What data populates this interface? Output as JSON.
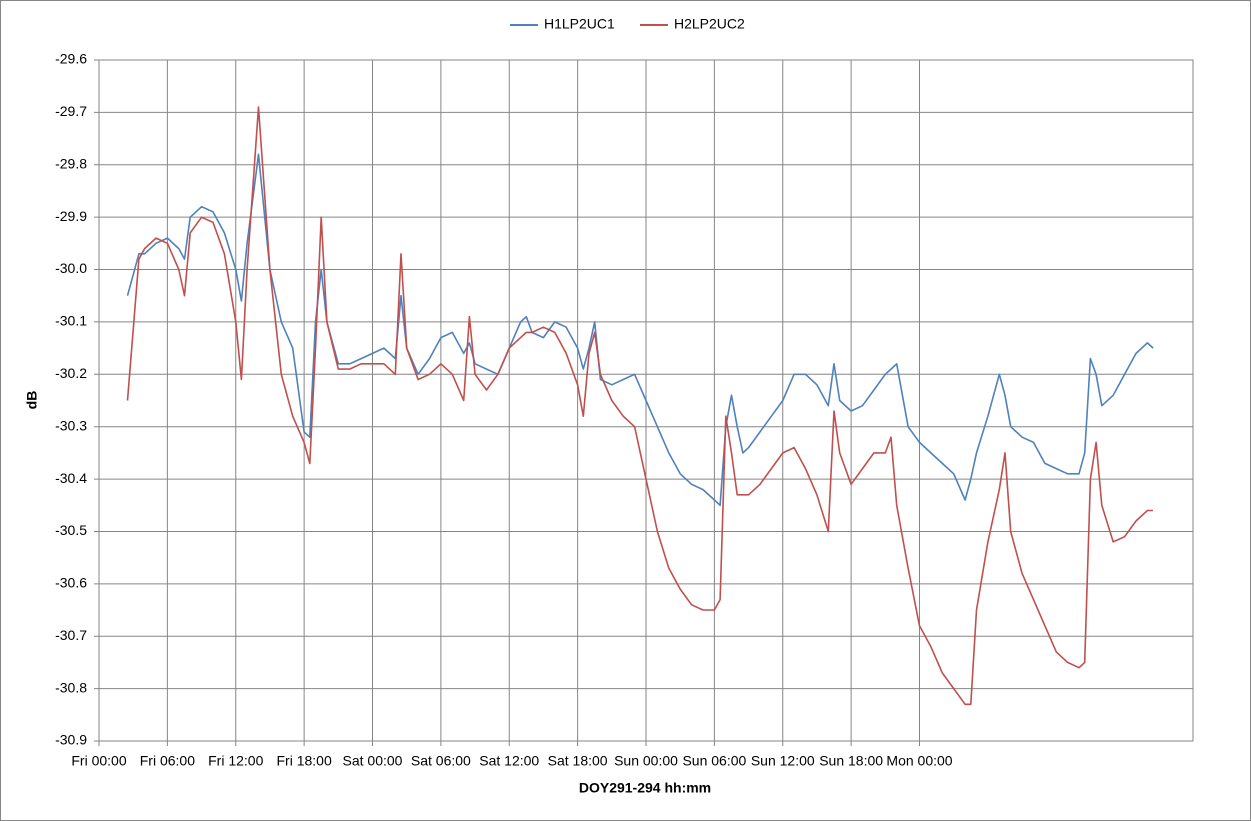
{
  "chart_data": {
    "type": "line",
    "x_label": "DOY291-294 hh:mm",
    "y_label": "dB",
    "xlim": [
      0,
      96
    ],
    "xticks": [
      {
        "value": 0,
        "label": "Fri 00:00"
      },
      {
        "value": 6,
        "label": "Fri 06:00"
      },
      {
        "value": 12,
        "label": "Fri 12:00"
      },
      {
        "value": 18,
        "label": "Fri 18:00"
      },
      {
        "value": 24,
        "label": "Sat 00:00"
      },
      {
        "value": 30,
        "label": "Sat 06:00"
      },
      {
        "value": 36,
        "label": "Sat 12:00"
      },
      {
        "value": 42,
        "label": "Sat 18:00"
      },
      {
        "value": 48,
        "label": "Sun 00:00"
      },
      {
        "value": 54,
        "label": "Sun 06:00"
      },
      {
        "value": 60,
        "label": "Sun 12:00"
      },
      {
        "value": 66,
        "label": "Sun 18:00"
      },
      {
        "value": 72,
        "label": "Mon 00:00"
      }
    ],
    "ylim": [
      -30.9,
      -29.6
    ],
    "yticks": [
      -30.9,
      -30.8,
      -30.7,
      -30.6,
      -30.5,
      -30.4,
      -30.3,
      -30.2,
      -30.1,
      {
        "value": -30,
        "label": "-30.0"
      },
      -29.9,
      -29.8,
      -29.7,
      -29.6
    ],
    "grid": true,
    "legend": "top",
    "x": [
      2.5,
      3.5,
      4,
      5,
      6,
      7,
      7.5,
      8,
      9,
      10,
      11,
      12,
      12.5,
      13,
      14,
      15,
      16,
      17,
      18,
      18.5,
      19,
      19.5,
      20,
      21,
      22,
      23,
      24,
      25,
      26,
      26.5,
      27,
      28,
      29,
      30,
      31,
      32,
      32.5,
      33,
      34,
      35,
      36,
      37,
      37.5,
      38,
      39,
      40,
      41,
      42,
      42.5,
      43,
      43.5,
      44,
      45,
      46,
      47,
      48,
      49,
      50,
      51,
      52,
      53,
      54,
      54.5,
      55,
      55.5,
      56,
      56.5,
      57,
      58,
      59,
      60,
      61,
      62,
      63,
      64,
      64.5,
      65,
      66,
      67,
      68,
      69,
      69.5,
      70,
      71,
      72,
      73,
      74,
      75,
      76,
      76.5,
      77,
      78,
      79,
      79.5,
      80,
      81,
      82,
      83,
      84,
      85,
      86,
      86.5,
      87,
      87.5,
      88,
      89,
      90,
      91,
      92,
      92.5
    ],
    "series": [
      {
        "name": "H1LP2UC1",
        "color": "#4f81bd",
        "values": [
          -30.05,
          -29.97,
          -29.97,
          -29.95,
          -29.94,
          -29.96,
          -29.98,
          -29.9,
          -29.88,
          -29.89,
          -29.93,
          -30.0,
          -30.06,
          -29.95,
          -29.78,
          -30.0,
          -30.1,
          -30.15,
          -30.31,
          -30.32,
          -30.1,
          -30.0,
          -30.1,
          -30.18,
          -30.18,
          -30.17,
          -30.16,
          -30.15,
          -30.17,
          -30.05,
          -30.15,
          -30.2,
          -30.17,
          -30.13,
          -30.12,
          -30.16,
          -30.14,
          -30.18,
          -30.19,
          -30.2,
          -30.15,
          -30.1,
          -30.09,
          -30.12,
          -30.13,
          -30.1,
          -30.11,
          -30.15,
          -30.19,
          -30.15,
          -30.1,
          -30.21,
          -30.22,
          -30.21,
          -30.2,
          -30.25,
          -30.3,
          -30.35,
          -30.39,
          -30.41,
          -30.42,
          -30.44,
          -30.45,
          -30.3,
          -30.24,
          -30.3,
          -30.35,
          -30.34,
          -30.31,
          -30.28,
          -30.25,
          -30.2,
          -30.2,
          -30.22,
          -30.26,
          -30.18,
          -30.25,
          -30.27,
          -30.26,
          -30.23,
          -30.2,
          -30.19,
          -30.18,
          -30.3,
          -30.33,
          -30.35,
          -30.37,
          -30.39,
          -30.44,
          -30.4,
          -30.35,
          -30.28,
          -30.2,
          -30.24,
          -30.3,
          -30.32,
          -30.33,
          -30.37,
          -30.38,
          -30.39,
          -30.39,
          -30.35,
          -30.17,
          -30.2,
          -30.26,
          -30.24,
          -30.2,
          -30.16,
          -30.14,
          -30.15
        ]
      },
      {
        "name": "H2LP2UC2",
        "color": "#c0504d",
        "values": [
          -30.25,
          -29.98,
          -29.96,
          -29.94,
          -29.95,
          -30.0,
          -30.05,
          -29.93,
          -29.9,
          -29.91,
          -29.97,
          -30.1,
          -30.21,
          -30.0,
          -29.69,
          -30.0,
          -30.2,
          -30.28,
          -30.33,
          -30.37,
          -30.15,
          -29.9,
          -30.1,
          -30.19,
          -30.19,
          -30.18,
          -30.18,
          -30.18,
          -30.2,
          -29.97,
          -30.15,
          -30.21,
          -30.2,
          -30.18,
          -30.2,
          -30.25,
          -30.09,
          -30.2,
          -30.23,
          -30.2,
          -30.15,
          -30.13,
          -30.12,
          -30.12,
          -30.11,
          -30.12,
          -30.16,
          -30.22,
          -30.28,
          -30.16,
          -30.12,
          -30.2,
          -30.25,
          -30.28,
          -30.3,
          -30.4,
          -30.5,
          -30.57,
          -30.61,
          -30.64,
          -30.65,
          -30.65,
          -30.63,
          -30.28,
          -30.35,
          -30.43,
          -30.43,
          -30.43,
          -30.41,
          -30.38,
          -30.35,
          -30.34,
          -30.38,
          -30.43,
          -30.5,
          -30.27,
          -30.35,
          -30.41,
          -30.38,
          -30.35,
          -30.35,
          -30.32,
          -30.45,
          -30.57,
          -30.68,
          -30.72,
          -30.77,
          -30.8,
          -30.83,
          -30.83,
          -30.65,
          -30.52,
          -30.42,
          -30.35,
          -30.5,
          -30.58,
          -30.63,
          -30.68,
          -30.73,
          -30.75,
          -30.76,
          -30.75,
          -30.4,
          -30.33,
          -30.45,
          -30.52,
          -30.51,
          -30.48,
          -30.46,
          -30.46
        ]
      }
    ]
  }
}
